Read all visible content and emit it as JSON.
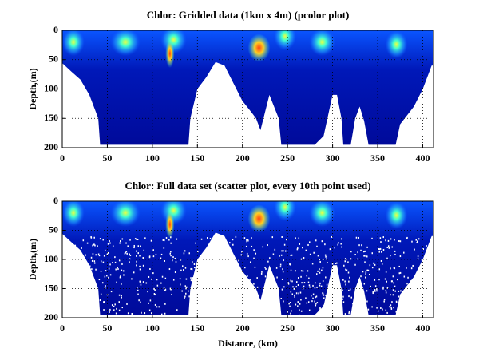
{
  "chart_data": [
    {
      "type": "pcolor",
      "title": "Chlor: Gridded data (1km x 4m) (pcolor plot)",
      "ylabel": "Depth,(m)",
      "xlim": [
        0,
        412
      ],
      "ylim": [
        0,
        200
      ],
      "y_reversed": true,
      "xticks": [
        0,
        50,
        100,
        150,
        200,
        250,
        300,
        350,
        400
      ],
      "yticks": [
        0,
        50,
        100,
        150,
        200
      ],
      "grid": true
    },
    {
      "type": "scatter",
      "title": "Chlor: Full data set (scatter plot, every 10th point used)",
      "ylabel": "Depth,(m)",
      "xlabel": "Distance, (km)",
      "xlim": [
        0,
        412
      ],
      "ylim": [
        0,
        200
      ],
      "y_reversed": true,
      "xticks": [
        0,
        50,
        100,
        150,
        200,
        250,
        300,
        350,
        400
      ],
      "yticks": [
        0,
        50,
        100,
        150,
        200
      ],
      "grid": true
    }
  ]
}
